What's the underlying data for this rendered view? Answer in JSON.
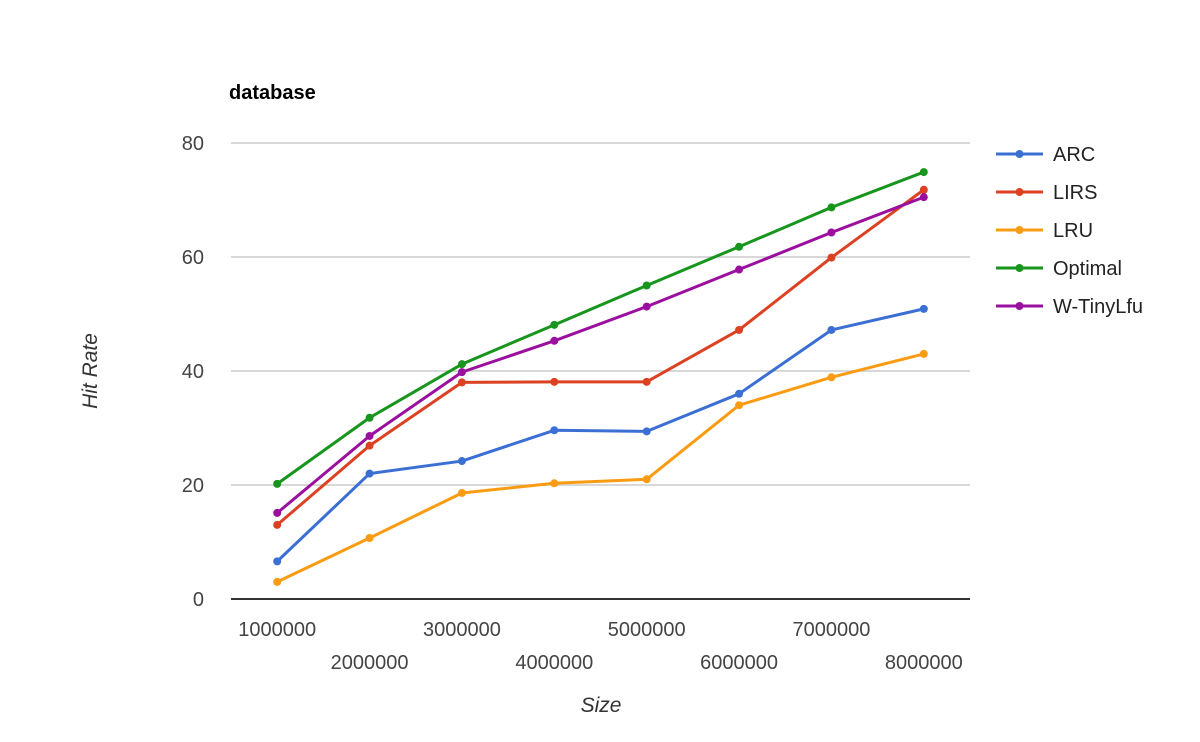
{
  "chart_data": {
    "type": "line",
    "title": "database",
    "xlabel": "Size",
    "ylabel": "Hit Rate",
    "x": [
      1000000,
      2000000,
      3000000,
      4000000,
      5000000,
      6000000,
      7000000,
      8000000
    ],
    "x_tick_labels": [
      "1000000",
      "2000000",
      "3000000",
      "4000000",
      "5000000",
      "6000000",
      "7000000",
      "8000000"
    ],
    "xlim": [
      500000,
      8500000
    ],
    "ylim": [
      0,
      80
    ],
    "y_ticks": [
      0,
      20,
      40,
      60,
      80
    ],
    "grid": true,
    "legend_position": "right",
    "series": [
      {
        "name": "ARC",
        "color": "#3c6fd3",
        "values": [
          6.6,
          22.0,
          24.2,
          29.6,
          29.4,
          36.0,
          47.2,
          50.9
        ]
      },
      {
        "name": "LIRS",
        "color": "#dc4122",
        "values": [
          13.0,
          26.9,
          38.0,
          38.1,
          38.1,
          47.2,
          59.9,
          71.8
        ]
      },
      {
        "name": "LRU",
        "color": "#fa9c13",
        "values": [
          3.0,
          10.7,
          18.6,
          20.3,
          21.0,
          34.0,
          38.9,
          43.0
        ]
      },
      {
        "name": "Optimal",
        "color": "#17951d",
        "values": [
          20.2,
          31.8,
          41.2,
          48.1,
          55.0,
          61.8,
          68.7,
          74.9
        ]
      },
      {
        "name": "W-TinyLfu",
        "color": "#9b0f9e",
        "values": [
          15.1,
          28.6,
          39.8,
          45.3,
          51.3,
          57.8,
          64.3,
          70.5
        ]
      }
    ]
  }
}
